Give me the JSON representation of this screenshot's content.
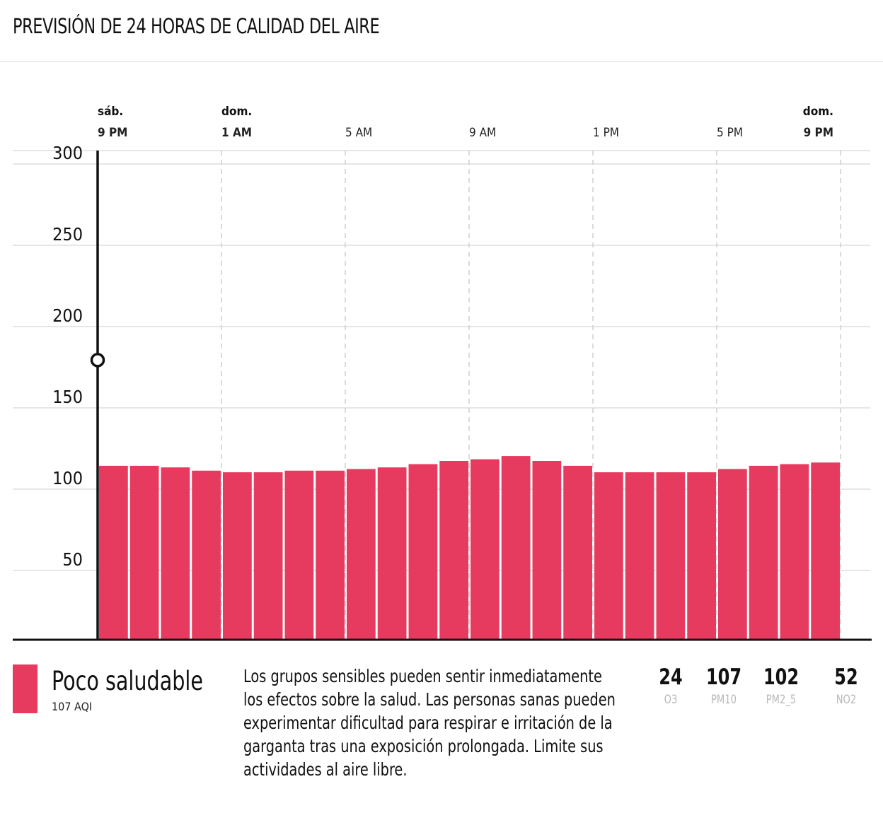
{
  "header": {
    "title": "PREVISIÓN DE 24 HORAS DE CALIDAD DEL AIRE"
  },
  "chart_data": {
    "type": "bar",
    "ylim": [
      0,
      300
    ],
    "yticks": [
      "50",
      "100",
      "150",
      "200",
      "250",
      "300"
    ],
    "x_ticks": [
      {
        "day": "sáb.",
        "time": "9 PM",
        "bold": true,
        "index": 0
      },
      {
        "day": "dom.",
        "time": "1 AM",
        "bold": true,
        "index": 4
      },
      {
        "day": "",
        "time": "5 AM",
        "bold": false,
        "index": 8
      },
      {
        "day": "",
        "time": "9 AM",
        "bold": false,
        "index": 12
      },
      {
        "day": "",
        "time": "1 PM",
        "bold": false,
        "index": 16
      },
      {
        "day": "",
        "time": "5 PM",
        "bold": false,
        "index": 20
      },
      {
        "day": "dom.",
        "time": "9 PM",
        "bold": true,
        "index": 24
      }
    ],
    "values": [
      107,
      107,
      106,
      104,
      103,
      103,
      104,
      104,
      105,
      106,
      108,
      110,
      111,
      113,
      110,
      107,
      103,
      103,
      103,
      103,
      105,
      107,
      108,
      109
    ],
    "current_marker_value": 172,
    "bar_color": "#e63b5e",
    "grid": true
  },
  "summary": {
    "level": "Poco saludable",
    "aqi": "107 AQI",
    "color": "#e63b5e",
    "description": "Los grupos sensibles pueden sentir inmediatamente los efectos sobre la salud. Las personas sanas pueden experimentar dificultad para respirar e irritación de la garganta tras una exposición prolongada. Limite sus actividades al aire libre."
  },
  "pollutants": [
    {
      "value": "24",
      "label": "O3"
    },
    {
      "value": "107",
      "label": "PM10"
    },
    {
      "value": "102",
      "label": "PM2_5"
    },
    {
      "value": "52",
      "label": "NO2"
    }
  ]
}
